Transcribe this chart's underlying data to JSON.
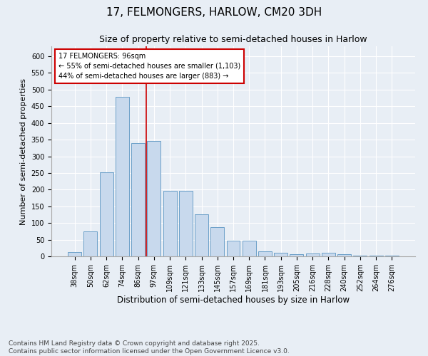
{
  "title1": "17, FELMONGERS, HARLOW, CM20 3DH",
  "title2": "Size of property relative to semi-detached houses in Harlow",
  "xlabel": "Distribution of semi-detached houses by size in Harlow",
  "ylabel": "Number of semi-detached properties",
  "categories": [
    "38sqm",
    "50sqm",
    "62sqm",
    "74sqm",
    "86sqm",
    "97sqm",
    "109sqm",
    "121sqm",
    "133sqm",
    "145sqm",
    "157sqm",
    "169sqm",
    "181sqm",
    "193sqm",
    "205sqm",
    "216sqm",
    "228sqm",
    "240sqm",
    "252sqm",
    "264sqm",
    "276sqm"
  ],
  "values": [
    13,
    75,
    253,
    478,
    340,
    347,
    196,
    196,
    127,
    87,
    46,
    46,
    15,
    10,
    7,
    8,
    10,
    6,
    3,
    2,
    3
  ],
  "bar_color": "#c8d9ed",
  "bar_edge_color": "#6b9fc8",
  "ref_line_index": 5,
  "ref_line_label": "17 FELMONGERS: 96sqm",
  "annotation_line1": "← 55% of semi-detached houses are smaller (1,103)",
  "annotation_line2": "44% of semi-detached houses are larger (883) →",
  "annotation_box_color": "#ffffff",
  "annotation_box_edge_color": "#cc0000",
  "ref_line_color": "#cc0000",
  "ylim": [
    0,
    630
  ],
  "yticks": [
    0,
    50,
    100,
    150,
    200,
    250,
    300,
    350,
    400,
    450,
    500,
    550,
    600
  ],
  "background_color": "#e8eef5",
  "plot_bg_color": "#e8eef5",
  "footer": "Contains HM Land Registry data © Crown copyright and database right 2025.\nContains public sector information licensed under the Open Government Licence v3.0.",
  "title1_fontsize": 11,
  "title2_fontsize": 9,
  "xlabel_fontsize": 8.5,
  "ylabel_fontsize": 8,
  "tick_fontsize": 7,
  "footer_fontsize": 6.5
}
